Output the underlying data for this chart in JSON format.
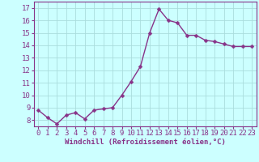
{
  "x": [
    0,
    1,
    2,
    3,
    4,
    5,
    6,
    7,
    8,
    9,
    10,
    11,
    12,
    13,
    14,
    15,
    16,
    17,
    18,
    19,
    20,
    21,
    22,
    23
  ],
  "y": [
    8.8,
    8.2,
    7.7,
    8.4,
    8.6,
    8.1,
    8.8,
    8.9,
    9.0,
    10.0,
    11.1,
    12.3,
    15.0,
    16.9,
    16.0,
    15.8,
    14.8,
    14.8,
    14.4,
    14.3,
    14.1,
    13.9,
    13.9,
    13.9
  ],
  "xlabel": "Windchill (Refroidissement éolien,°C)",
  "line_color": "#883388",
  "marker_color": "#883388",
  "bg_color": "#ccffff",
  "grid_color": "#aadddd",
  "ylim": [
    7.5,
    17.5
  ],
  "xlim": [
    -0.5,
    23.5
  ],
  "yticks": [
    8,
    9,
    10,
    11,
    12,
    13,
    14,
    15,
    16,
    17
  ],
  "xticks": [
    0,
    1,
    2,
    3,
    4,
    5,
    6,
    7,
    8,
    9,
    10,
    11,
    12,
    13,
    14,
    15,
    16,
    17,
    18,
    19,
    20,
    21,
    22,
    23
  ],
  "xlabel_fontsize": 6.5,
  "tick_fontsize": 6.5,
  "linewidth": 1.0,
  "markersize": 2.5
}
